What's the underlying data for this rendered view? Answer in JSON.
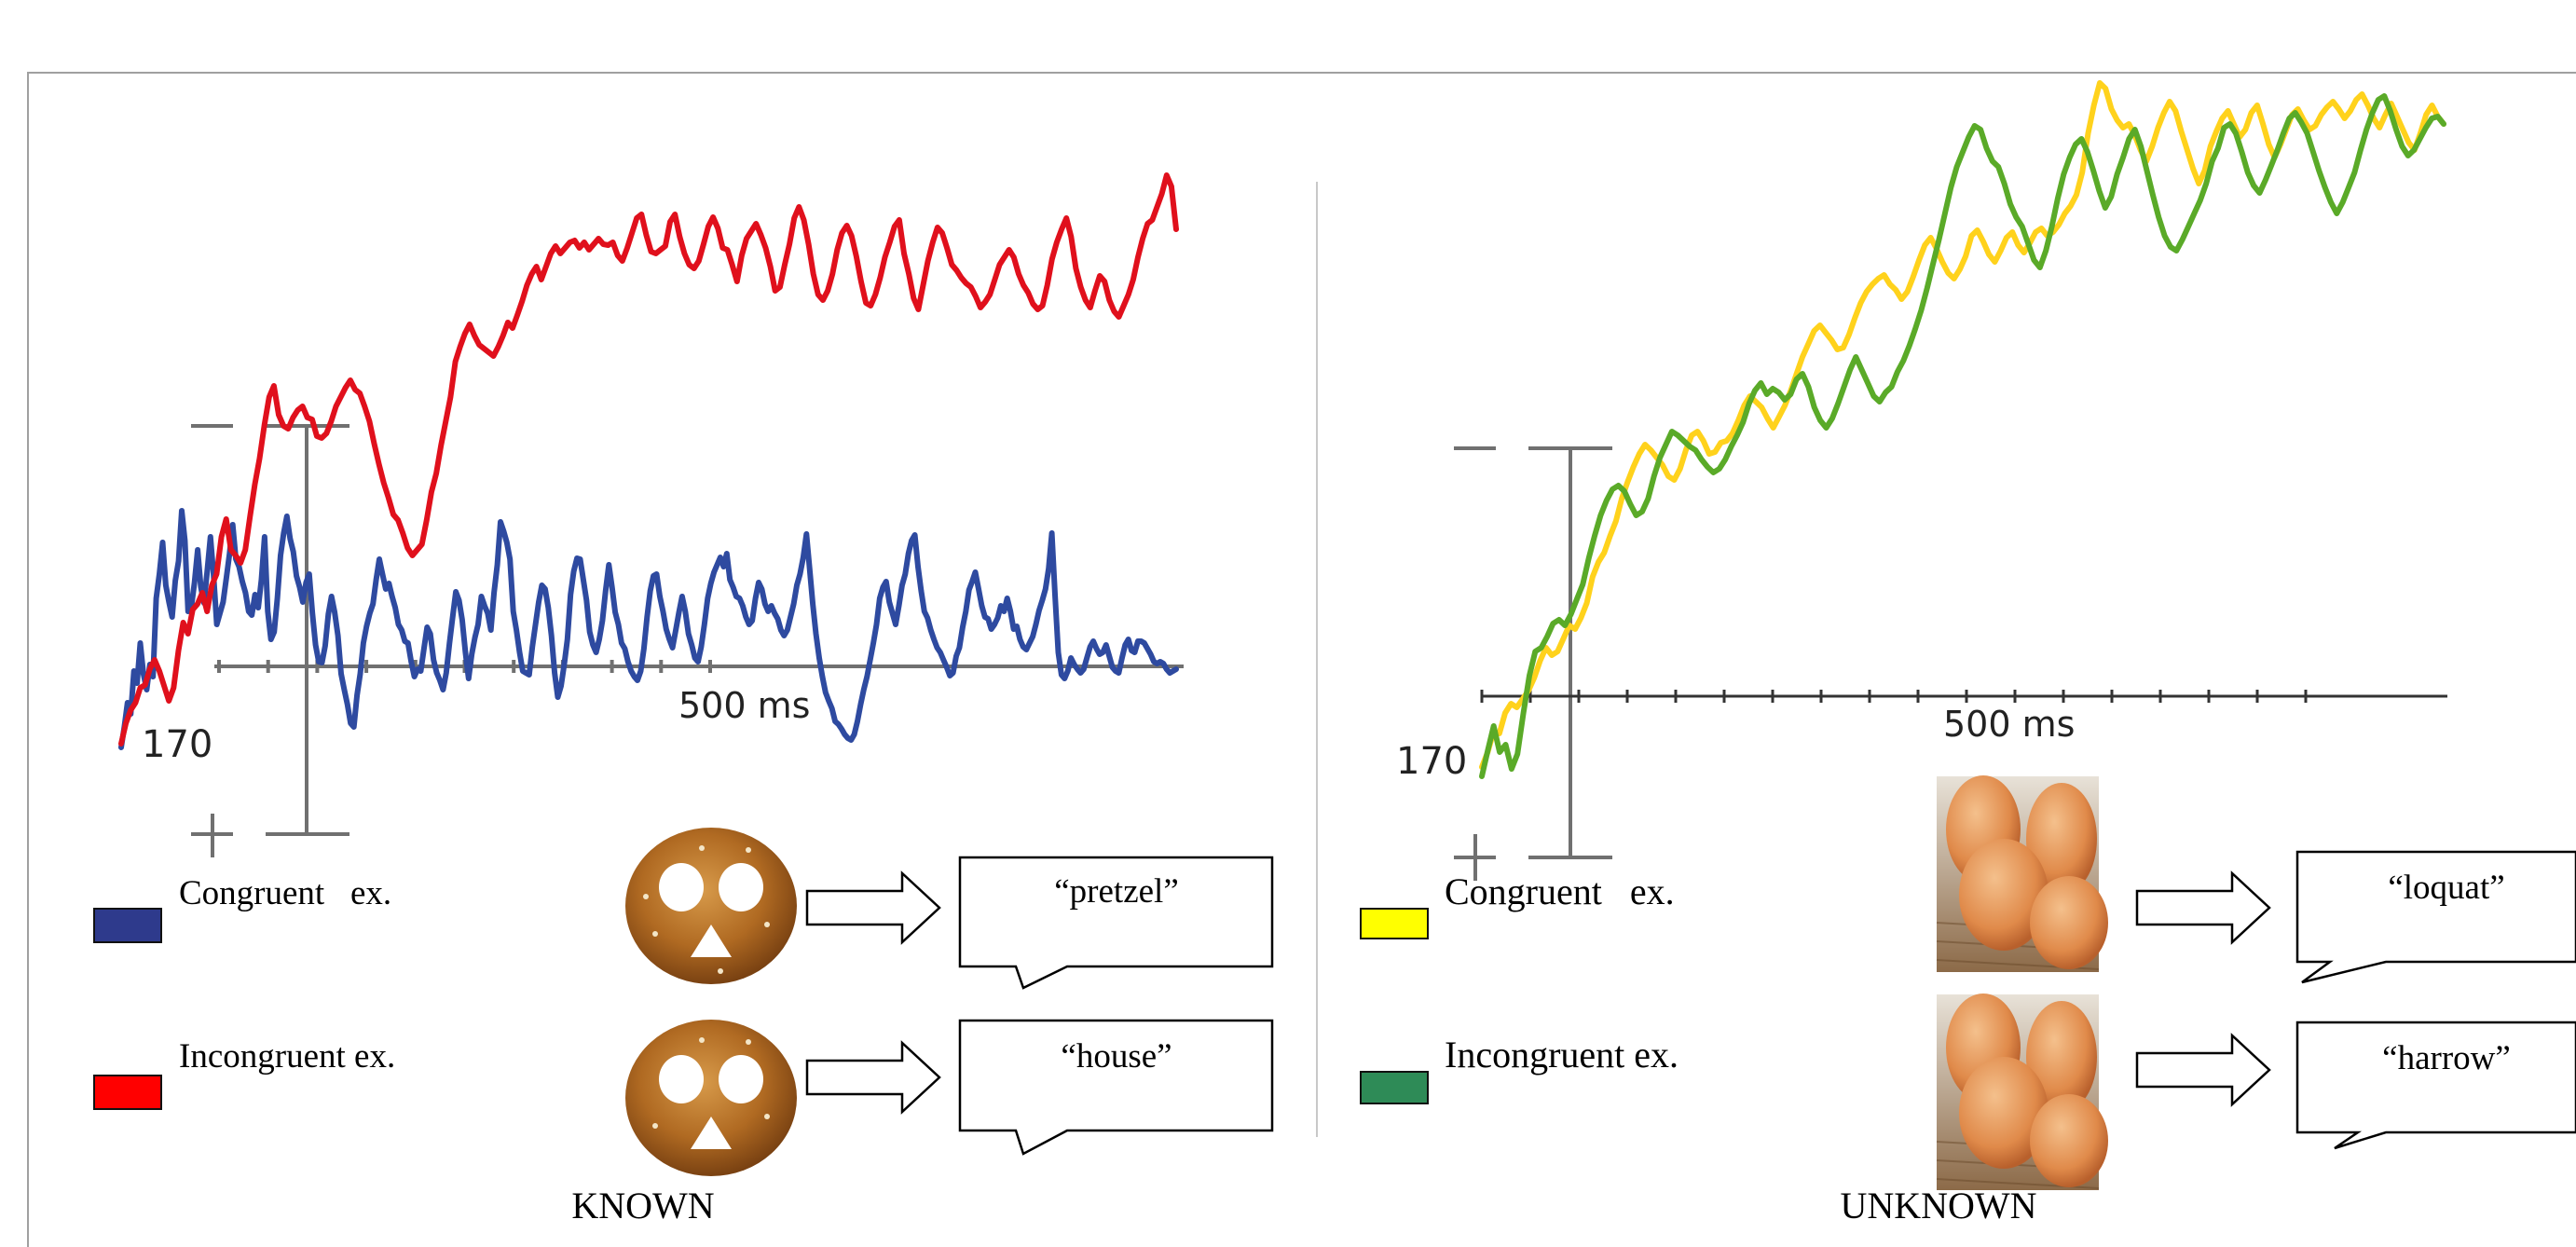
{
  "chart_data": [
    {
      "type": "line",
      "caption": "KNOWN",
      "x_unit_label": "500 ms",
      "y_tick_label": "170",
      "scale_bar": {
        "top_sign": "−",
        "bottom_sign": "+"
      },
      "legend": [
        {
          "label": "Congruent   ex.",
          "color": "#2e3a8c"
        },
        {
          "label": "Incongruent ex.",
          "color": "#ff0000"
        }
      ],
      "stimuli": [
        {
          "image": "pretzel-photo",
          "word": "“pretzel”"
        },
        {
          "image": "pretzel-photo",
          "word": "“house”"
        }
      ],
      "series": [
        {
          "color": "#2e4aa0",
          "values": [
            0.16,
            0.38,
            0.64,
            0.52,
            0.98,
            0.85,
            1.28,
            0.95,
            0.78,
            1.05,
            0.92,
            1.76,
            2.02,
            2.36,
            1.9,
            1.72,
            1.56,
            1.95,
            2.16,
            2.7,
            2.38,
            1.62,
            1.66,
            1.93,
            2.28,
            1.88,
            1.71,
            2.05,
            2.42,
            2.0,
            1.48,
            1.6,
            1.72,
            1.98,
            2.24,
            2.55,
            2.18,
            2.1,
            1.94,
            1.82,
            1.62,
            1.58,
            1.8,
            1.66,
            1.96,
            2.42,
            1.62,
            1.32,
            1.4,
            1.76,
            2.22,
            2.46,
            2.64,
            2.4,
            2.26,
            2.0,
            1.88,
            1.72,
            1.93,
            2.02,
            1.6,
            1.26,
            1.08,
            1.07,
            1.25,
            1.59,
            1.78,
            1.61,
            1.36,
            0.95,
            0.78,
            0.62,
            0.42,
            0.38,
            0.72,
            0.95,
            1.28,
            1.46,
            1.6,
            1.7,
            1.96,
            2.18,
            2.02,
            1.86,
            1.92,
            1.78,
            1.66,
            1.48,
            1.42,
            1.3,
            1.28,
            1.08,
            0.92,
            1.0,
            0.98,
            1.22,
            1.45,
            1.38,
            1.1,
            0.96,
            0.88,
            0.78,
            0.96,
            1.28,
            1.56,
            1.83,
            1.74,
            1.53,
            1.18,
            0.9,
            1.16,
            1.34,
            1.48,
            1.78,
            1.68,
            1.6,
            1.42,
            1.82,
            2.12,
            2.58,
            2.48,
            2.36,
            2.18,
            1.62,
            1.42,
            1.18,
            0.98,
            0.96,
            0.94,
            1.24,
            1.48,
            1.72,
            1.9,
            1.86,
            1.66,
            1.36,
            0.96,
            0.7,
            0.82,
            1.05,
            1.32,
            1.8,
            2.05,
            2.19,
            2.18,
            1.96,
            1.74,
            1.4,
            1.26,
            1.18,
            1.32,
            1.52,
            1.84,
            2.12,
            1.88,
            1.61,
            1.48,
            1.28,
            1.22,
            1.08,
            0.98,
            0.92,
            0.88,
            0.98,
            1.22,
            1.56,
            1.84,
            2.0,
            2.02,
            1.78,
            1.62,
            1.43,
            1.32,
            1.23,
            1.42,
            1.61,
            1.78,
            1.62,
            1.38,
            1.26,
            1.12,
            1.08,
            1.24,
            1.48,
            1.76,
            1.92,
            2.04,
            2.12,
            2.2,
            2.1,
            2.24,
            1.96,
            1.88,
            1.78,
            1.76,
            1.68,
            1.56,
            1.48,
            1.52,
            1.76,
            1.93,
            1.86,
            1.7,
            1.62,
            1.68,
            1.6,
            1.54,
            1.42,
            1.36,
            1.42,
            1.56,
            1.7,
            1.9,
            2.02,
            2.2,
            2.45,
            2.08,
            1.7,
            1.38,
            1.12,
            0.92,
            0.75,
            0.66,
            0.58,
            0.44,
            0.41,
            0.36,
            0.3,
            0.26,
            0.24,
            0.3,
            0.44,
            0.62,
            0.78,
            0.92,
            1.1,
            1.28,
            1.48,
            1.76,
            1.88,
            1.94,
            1.72,
            1.6,
            1.48,
            1.68,
            1.9,
            2.02,
            2.24,
            2.38,
            2.44,
            2.1,
            1.84,
            1.62,
            1.55,
            1.42,
            1.32,
            1.23,
            1.18,
            1.1,
            1.02,
            0.93,
            0.96,
            1.14,
            1.23,
            1.45,
            1.62,
            1.85,
            1.94,
            2.04,
            1.86,
            1.68,
            1.56,
            1.54,
            1.43,
            1.48,
            1.55,
            1.68,
            1.62,
            1.76,
            1.62,
            1.43,
            1.46,
            1.32,
            1.24,
            1.21,
            1.28,
            1.35,
            1.48,
            1.63,
            1.74,
            1.86,
            2.08,
            2.46,
            1.8,
            1.18,
            0.94,
            0.9,
            0.98,
            1.12,
            1.05,
            1.0,
            0.96,
            1.0,
            1.12,
            1.24,
            1.3,
            1.22,
            1.16,
            1.18,
            1.26,
            1.14,
            1.02,
            0.98,
            0.96,
            1.12,
            1.26,
            1.32,
            1.2,
            1.18,
            1.3,
            1.3,
            1.28,
            1.22,
            1.16,
            1.08,
            1.06,
            1.08,
            1.06,
            1.0,
            0.96,
            0.98,
            1.0
          ]
        },
        {
          "color": "#e0101c",
          "values": [
            0.2,
            0.42,
            0.56,
            0.64,
            0.8,
            0.83,
            1.0,
            1.1,
            0.98,
            0.82,
            0.66,
            0.8,
            1.2,
            1.5,
            1.38,
            1.64,
            1.7,
            1.82,
            1.62,
            1.9,
            2.02,
            2.42,
            2.61,
            2.28,
            2.22,
            2.14,
            2.28,
            2.64,
            2.98,
            3.26,
            3.62,
            3.92,
            4.04,
            3.73,
            3.61,
            3.58,
            3.7,
            3.78,
            3.82,
            3.7,
            3.68,
            3.5,
            3.48,
            3.53,
            3.66,
            3.82,
            3.92,
            4.02,
            4.1,
            4.0,
            3.96,
            3.82,
            3.66,
            3.42,
            3.2,
            3.0,
            2.84,
            2.66,
            2.6,
            2.46,
            2.3,
            2.22,
            2.28,
            2.34,
            2.6,
            2.9,
            3.1,
            3.4,
            3.66,
            3.92,
            4.3,
            4.46,
            4.6,
            4.7,
            4.58,
            4.48,
            4.44,
            4.4,
            4.36,
            4.46,
            4.58,
            4.72,
            4.66,
            4.8,
            4.95,
            5.12,
            5.24,
            5.32,
            5.18,
            5.32,
            5.46,
            5.54,
            5.46,
            5.52,
            5.58,
            5.6,
            5.52,
            5.58,
            5.5,
            5.56,
            5.62,
            5.56,
            5.55,
            5.58,
            5.44,
            5.38,
            5.52,
            5.68,
            5.84,
            5.88,
            5.66,
            5.48,
            5.46,
            5.5,
            5.54,
            5.8,
            5.88,
            5.64,
            5.46,
            5.34,
            5.3,
            5.38,
            5.56,
            5.75,
            5.85,
            5.73,
            5.52,
            5.5,
            5.34,
            5.16,
            5.44,
            5.62,
            5.7,
            5.78,
            5.66,
            5.52,
            5.32,
            5.06,
            5.1,
            5.34,
            5.56,
            5.84,
            5.96,
            5.82,
            5.56,
            5.24,
            5.02,
            4.96,
            5.06,
            5.24,
            5.5,
            5.68,
            5.76,
            5.65,
            5.43,
            5.16,
            4.93,
            4.9,
            5.02,
            5.2,
            5.42,
            5.58,
            5.75,
            5.82,
            5.46,
            5.24,
            4.98,
            4.86,
            5.12,
            5.38,
            5.58,
            5.74,
            5.68,
            5.52,
            5.34,
            5.28,
            5.2,
            5.14,
            5.1,
            5.0,
            4.88,
            4.94,
            5.02,
            5.18,
            5.34,
            5.42,
            5.5,
            5.42,
            5.24,
            5.12,
            5.04,
            4.92,
            4.86,
            4.9,
            5.12,
            5.4,
            5.58,
            5.72,
            5.84,
            5.64,
            5.3,
            5.1,
            4.96,
            4.88,
            5.06,
            5.22,
            5.16,
            4.96,
            4.84,
            4.78,
            4.9,
            5.02,
            5.18,
            5.42,
            5.62,
            5.78,
            5.82,
            5.96,
            6.1,
            6.3,
            6.18,
            5.72
          ]
        }
      ]
    },
    {
      "type": "line",
      "caption": "UNKNOWN",
      "x_unit_label": "500 ms",
      "y_tick_label": "170",
      "scale_bar": {
        "top_sign": "−",
        "bottom_sign": "+"
      },
      "legend": [
        {
          "label": "Congruent   ex.",
          "color": "#ffff00"
        },
        {
          "label": "Incongruent ex.",
          "color": "#2e8b57"
        }
      ],
      "stimuli": [
        {
          "image": "loquat-photo",
          "word": "“loquat”"
        },
        {
          "image": "loquat-photo",
          "word": "“harrow”"
        }
      ],
      "series": [
        {
          "color": "#ffd21c",
          "values": [
            0.22,
            0.38,
            0.6,
            0.58,
            0.8,
            0.9,
            0.86,
            0.95,
            1.04,
            1.18,
            1.36,
            1.5,
            1.42,
            1.46,
            1.6,
            1.74,
            1.7,
            1.82,
            1.98,
            2.26,
            2.42,
            2.52,
            2.7,
            2.86,
            3.1,
            3.28,
            3.44,
            3.58,
            3.68,
            3.62,
            3.54,
            3.46,
            3.34,
            3.3,
            3.42,
            3.62,
            3.78,
            3.82,
            3.72,
            3.58,
            3.6,
            3.7,
            3.72,
            3.8,
            3.94,
            4.1,
            4.2,
            4.14,
            4.08,
            3.96,
            3.86,
            3.98,
            4.1,
            4.26,
            4.44,
            4.62,
            4.76,
            4.9,
            4.96,
            4.88,
            4.8,
            4.7,
            4.72,
            4.86,
            5.04,
            5.2,
            5.32,
            5.4,
            5.46,
            5.5,
            5.4,
            5.34,
            5.24,
            5.32,
            5.48,
            5.66,
            5.82,
            5.9,
            5.78,
            5.64,
            5.52,
            5.46,
            5.56,
            5.7,
            5.92,
            5.98,
            5.86,
            5.72,
            5.64,
            5.76,
            5.9,
            5.96,
            5.82,
            5.74,
            5.84,
            5.96,
            6.0,
            5.92,
            5.96,
            6.04,
            6.16,
            6.24,
            6.36,
            6.6,
            7.02,
            7.32,
            7.56,
            7.5,
            7.28,
            7.16,
            7.08,
            7.12,
            7.0,
            6.84,
            6.72,
            6.88,
            7.08,
            7.24,
            7.36,
            7.26,
            7.04,
            6.84,
            6.64,
            6.48,
            6.62,
            6.88,
            7.04,
            7.18,
            7.26,
            7.12,
            6.98,
            7.06,
            7.24,
            7.32,
            7.12,
            6.9,
            6.76,
            6.9,
            7.06,
            7.22,
            7.28,
            7.16,
            7.06,
            7.1,
            7.22,
            7.3,
            7.36,
            7.28,
            7.18,
            7.26,
            7.38,
            7.44,
            7.32,
            7.18,
            7.08,
            7.22,
            7.34,
            7.2,
            7.06,
            6.92,
            6.84,
            7.02,
            7.22,
            7.32,
            7.2,
            7.12
          ]
        },
        {
          "color": "#5aaa28",
          "values": [
            0.12,
            0.4,
            0.66,
            0.38,
            0.46,
            0.2,
            0.36,
            0.8,
            1.2,
            1.46,
            1.5,
            1.62,
            1.76,
            1.8,
            1.74,
            1.86,
            2.02,
            2.18,
            2.46,
            2.7,
            2.92,
            3.08,
            3.2,
            3.24,
            3.18,
            3.04,
            2.92,
            2.96,
            3.1,
            3.34,
            3.54,
            3.68,
            3.82,
            3.78,
            3.72,
            3.66,
            3.62,
            3.52,
            3.44,
            3.38,
            3.42,
            3.52,
            3.66,
            3.78,
            3.92,
            4.12,
            4.26,
            4.34,
            4.22,
            4.28,
            4.24,
            4.16,
            4.22,
            4.38,
            4.44,
            4.3,
            4.08,
            3.94,
            3.86,
            3.96,
            4.12,
            4.3,
            4.48,
            4.62,
            4.48,
            4.34,
            4.2,
            4.14,
            4.24,
            4.3,
            4.46,
            4.58,
            4.74,
            4.92,
            5.12,
            5.36,
            5.62,
            5.88,
            6.16,
            6.44,
            6.66,
            6.82,
            6.98,
            7.1,
            7.06,
            6.86,
            6.72,
            6.66,
            6.48,
            6.26,
            6.12,
            6.02,
            5.84,
            5.66,
            5.58,
            5.76,
            6.02,
            6.32,
            6.58,
            6.76,
            6.9,
            6.96,
            6.82,
            6.62,
            6.4,
            6.22,
            6.34,
            6.58,
            6.76,
            6.96,
            7.06,
            6.88,
            6.62,
            6.36,
            6.12,
            5.92,
            5.8,
            5.76,
            5.88,
            6.02,
            6.16,
            6.3,
            6.48,
            6.72,
            6.86,
            7.08,
            7.12,
            7.02,
            6.82,
            6.6,
            6.46,
            6.38,
            6.52,
            6.68,
            6.84,
            7.02,
            7.18,
            7.24,
            7.14,
            7.02,
            6.82,
            6.62,
            6.44,
            6.28,
            6.16,
            6.28,
            6.44,
            6.6,
            6.84,
            7.06,
            7.24,
            7.38,
            7.42,
            7.26,
            7.06,
            6.88,
            6.78,
            6.84,
            6.96,
            7.08,
            7.18,
            7.2,
            7.12
          ]
        }
      ]
    }
  ]
}
